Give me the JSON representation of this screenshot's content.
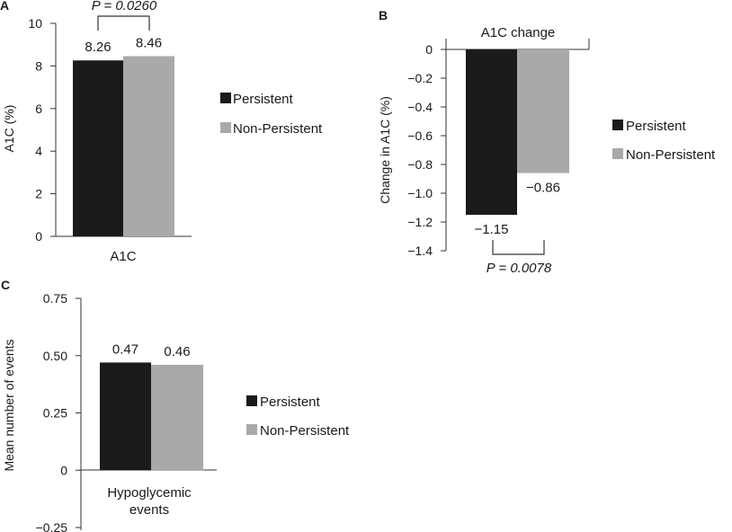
{
  "colors": {
    "persistent": "#1a1a1a",
    "non_persistent": "#a9a9a9"
  },
  "chart_data": [
    {
      "panel": "A",
      "type": "bar",
      "title": "",
      "xlabel": "",
      "ylabel": "A1C (%)",
      "categories": [
        "A1C"
      ],
      "series": [
        {
          "name": "Persistent",
          "values": [
            8.26
          ]
        },
        {
          "name": "Non-Persistent",
          "values": [
            8.46
          ]
        }
      ],
      "data_labels": [
        "8.26",
        "8.46"
      ],
      "yticks": [
        0,
        2,
        4,
        6,
        8,
        10
      ],
      "ytick_labels": [
        "0",
        "2",
        "4",
        "6",
        "8",
        "10"
      ],
      "ylim": [
        0,
        10
      ],
      "p_value": "P = 0.0260",
      "legend_placement": "right",
      "grid": false
    },
    {
      "panel": "B",
      "type": "bar",
      "title": "",
      "xlabel": "",
      "ylabel": "Change in A1C (%)",
      "categories": [
        "A1C change"
      ],
      "series": [
        {
          "name": "Persistent",
          "values": [
            -1.15
          ]
        },
        {
          "name": "Non-Persistent",
          "values": [
            -0.86
          ]
        }
      ],
      "data_labels": [
        "−1.15",
        "−0.86"
      ],
      "yticks": [
        0,
        -0.2,
        -0.4,
        -0.6,
        -0.8,
        -1.0,
        -1.2,
        -1.4
      ],
      "ytick_labels": [
        "0",
        "−0.2",
        "−0.4",
        "−0.6",
        "−0.8",
        "−1.0",
        "−1.2",
        "−1.4"
      ],
      "ylim": [
        -1.4,
        0
      ],
      "p_value": "P = 0.0078",
      "legend_placement": "right",
      "grid": false
    },
    {
      "panel": "C",
      "type": "bar",
      "title": "",
      "xlabel": "",
      "ylabel": "Mean number of events",
      "categories": [
        "Hypoglycemic events"
      ],
      "category_lines": [
        "Hypoglycemic",
        "events"
      ],
      "series": [
        {
          "name": "Persistent",
          "values": [
            0.47
          ]
        },
        {
          "name": "Non-Persistent",
          "values": [
            0.46
          ]
        }
      ],
      "data_labels": [
        "0.47",
        "0.46"
      ],
      "yticks": [
        0.75,
        0.5,
        0.25,
        0,
        -0.25
      ],
      "ytick_labels": [
        "0.75",
        "0.50",
        "0.25",
        "0",
        "−0.25"
      ],
      "ylim": [
        -0.25,
        0.75
      ],
      "legend_placement": "right",
      "grid": false
    }
  ]
}
